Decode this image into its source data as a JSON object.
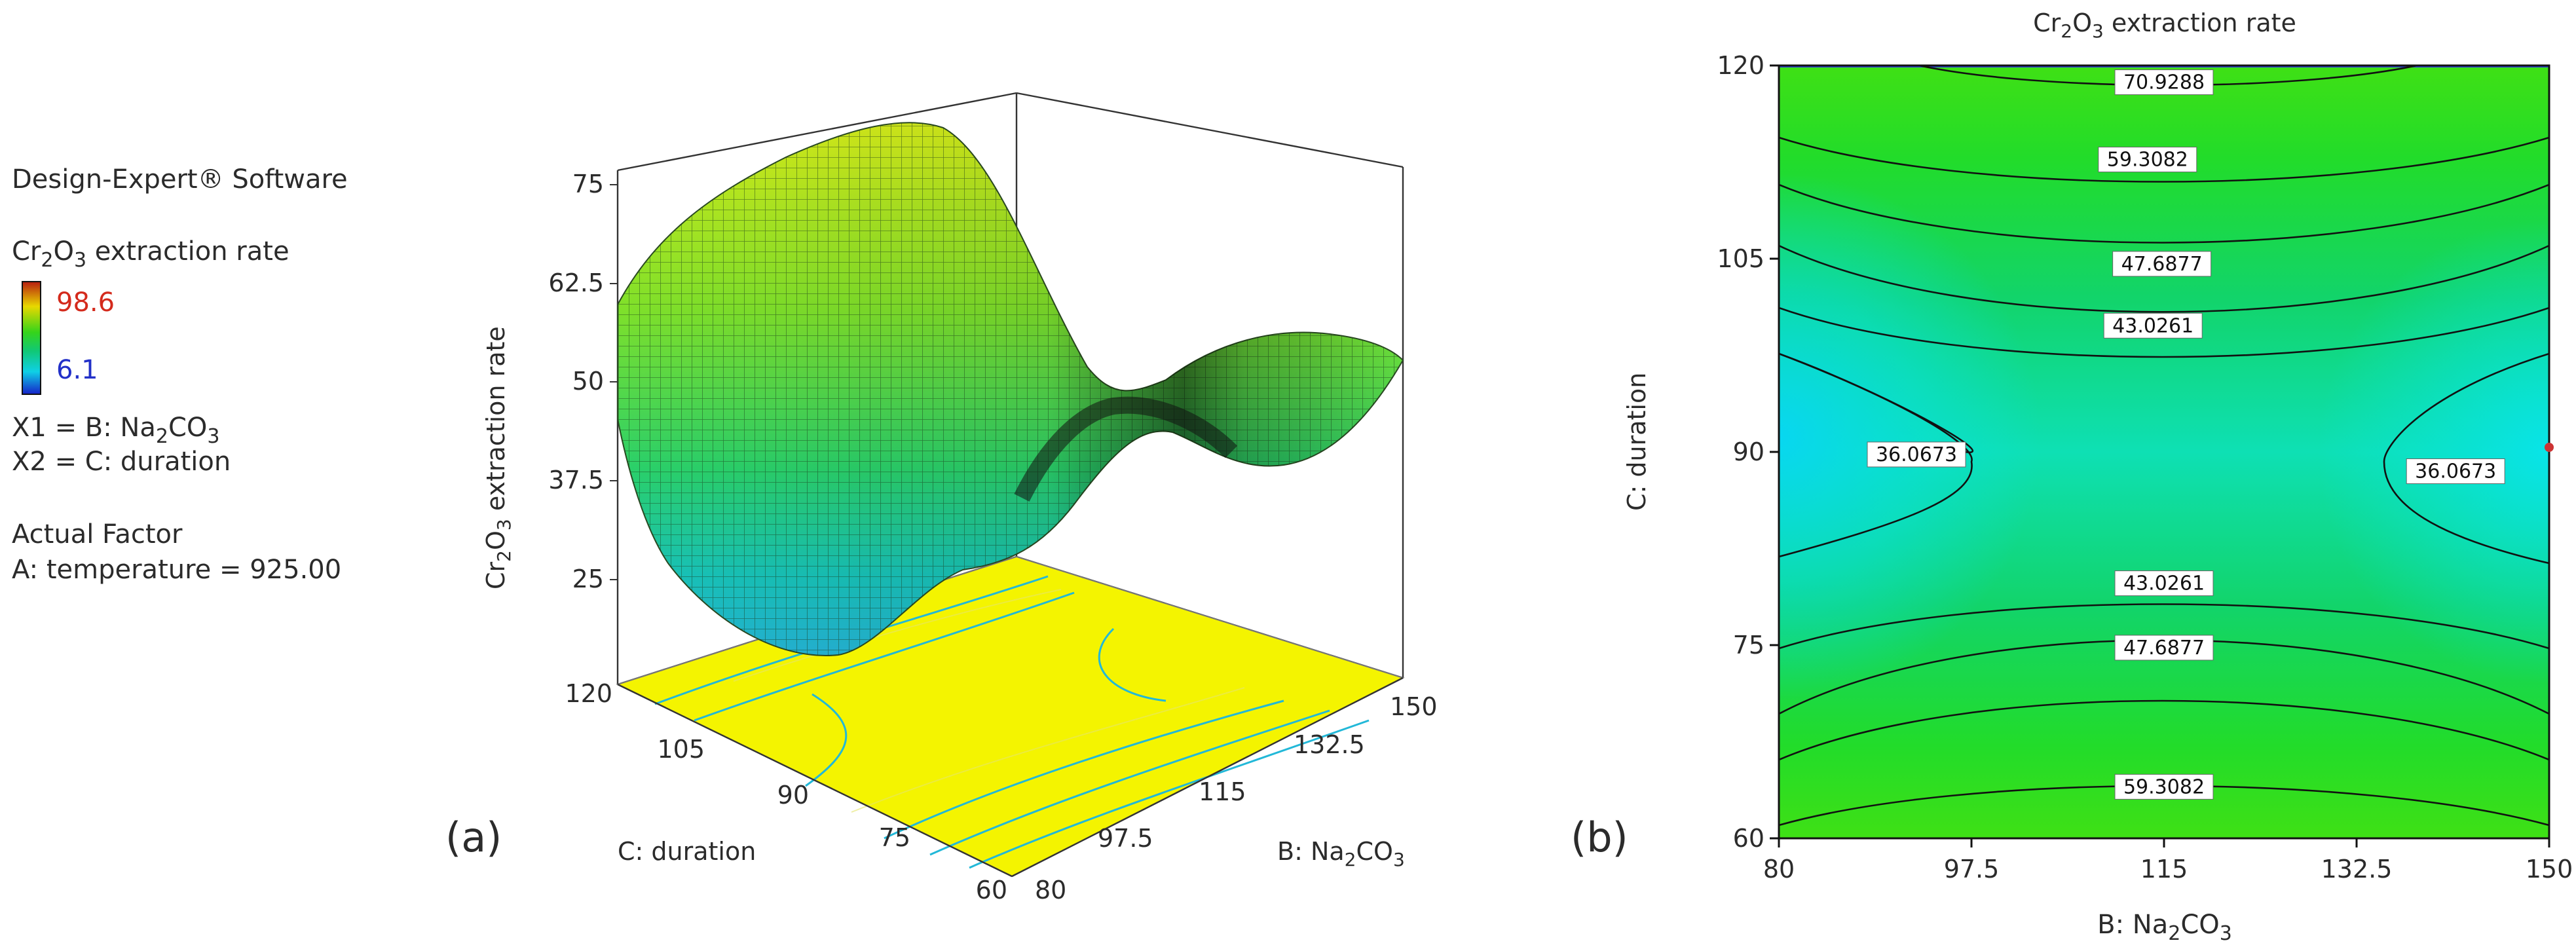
{
  "legend": {
    "software": "Design-Expert® Software",
    "response_main": "Cr",
    "response_sub1": "2",
    "response_mid": "O",
    "response_sub2": "3",
    "response_rest": " extraction rate",
    "high_value": "98.6",
    "low_value": "6.1",
    "high_color": "#d42a1c",
    "low_color": "#2230c8",
    "x1_prefix": "X1 = B: Na",
    "x1_sub": "2",
    "x1_suffix": "CO",
    "x1_sub2": "3",
    "x2": "X2 = C: duration",
    "actual_factor_title": "Actual Factor",
    "actual_factor": "A: temperature = 925.00"
  },
  "panel_labels": {
    "a": "(a)",
    "b": "(b)"
  },
  "chart_data": [
    {
      "type": "surface3d",
      "title": "",
      "zlabel_main": "Cr",
      "zlabel_sub1": "2",
      "zlabel_mid": "O",
      "zlabel_sub2": "3",
      "zlabel_rest": " extraction  rate",
      "z_ticks": [
        "75",
        "62.5",
        "50",
        "37.5",
        "25"
      ],
      "zlim": [
        25,
        75
      ],
      "x_axis_label_prefix": "B: Na",
      "x_axis_label_sub": "2",
      "x_axis_label_mid": "CO",
      "x_axis_label_sub2": "3",
      "x_ticks": [
        "80",
        "97.5",
        "115",
        "132.5",
        "150"
      ],
      "xlim": [
        80,
        150
      ],
      "y_axis_label": "C: duration",
      "y_ticks": [
        "60",
        "75",
        "90",
        "105",
        "120"
      ],
      "ylim": [
        60,
        120
      ],
      "surface_corners": {
        "B80_C60": 58,
        "B80_C120": 58,
        "B150_C60": 53,
        "B150_C120": 53,
        "saddle_B115_C90": 36
      },
      "floor_color": "#f4f400"
    },
    {
      "type": "contour",
      "title_main": "Cr",
      "title_sub1": "2",
      "title_mid": "O",
      "title_sub2": "3",
      "title_rest": " extraction  rate",
      "xlabel_prefix": "B: Na",
      "xlabel_sub": "2",
      "xlabel_mid": "CO",
      "xlabel_sub2": "3",
      "ylabel": "C: duration",
      "x_ticks": [
        80,
        97.5,
        115,
        132.5,
        150
      ],
      "x_tick_labels": [
        "80",
        "97.5",
        "115",
        "132.5",
        "150"
      ],
      "y_ticks": [
        60,
        75,
        90,
        105,
        120
      ],
      "y_tick_labels": [
        "60",
        "75",
        "90",
        "105",
        "120"
      ],
      "xlim": [
        80,
        150
      ],
      "ylim": [
        60,
        120
      ],
      "contour_levels": [
        36.0673,
        43.0261,
        47.6877,
        59.3082,
        70.9288
      ],
      "contour_labels": [
        {
          "text": "70.9288",
          "x": 115.0,
          "y": 118.7
        },
        {
          "text": "59.3082",
          "x": 113.5,
          "y": 112.7
        },
        {
          "text": "47.6877",
          "x": 114.8,
          "y": 104.6
        },
        {
          "text": "43.0261",
          "x": 114.0,
          "y": 99.8
        },
        {
          "text": "36.0673",
          "x": 92.5,
          "y": 89.8
        },
        {
          "text": "36.0673",
          "x": 141.5,
          "y": 88.5
        },
        {
          "text": "43.0261",
          "x": 115.0,
          "y": 79.8
        },
        {
          "text": "47.6877",
          "x": 115.0,
          "y": 74.8
        },
        {
          "text": "59.3082",
          "x": 115.0,
          "y": 64.0
        }
      ]
    }
  ]
}
